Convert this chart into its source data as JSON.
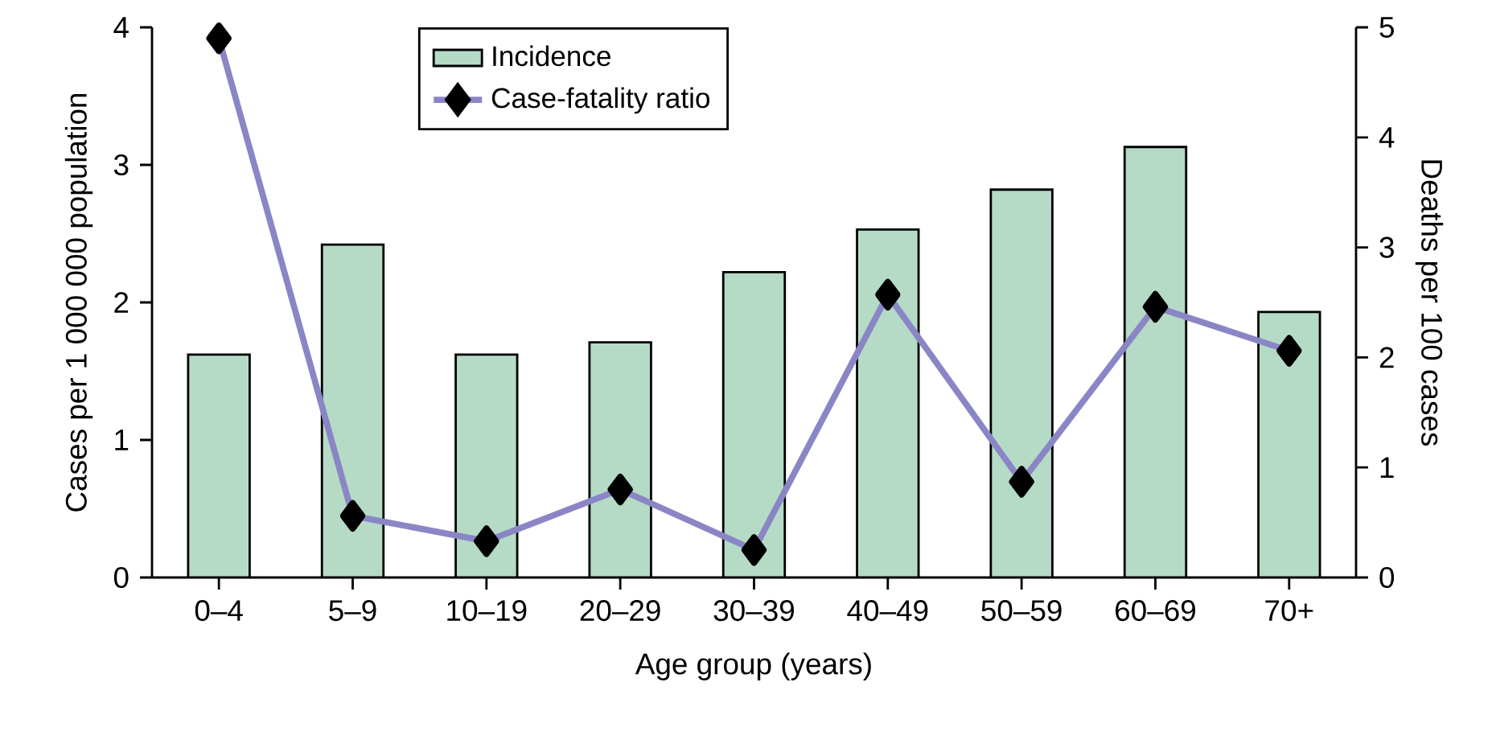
{
  "chart_data": {
    "type": "bar",
    "xlabel": "Age group (years)",
    "ylabel": "Cases per 1 000 000 population",
    "y2label": "Deaths per 100 cases",
    "categories": [
      "0–4",
      "5–9",
      "10–19",
      "20–29",
      "30–39",
      "40–49",
      "50–59",
      "60–69",
      "70+"
    ],
    "series": [
      {
        "name": "Incidence",
        "color": "#b5dbc6",
        "values": [
          1.62,
          2.42,
          1.62,
          1.71,
          2.22,
          2.53,
          2.82,
          3.13,
          1.93
        ]
      },
      {
        "name": "Case-fatality ratio",
        "type": "line",
        "axis": "y2",
        "color": "#8a86c6",
        "values": [
          4.9,
          0.56,
          0.33,
          0.8,
          0.25,
          2.57,
          0.87,
          2.46,
          2.06
        ]
      }
    ],
    "ylim": [
      0,
      4
    ],
    "yticks": [
      0,
      1,
      2,
      3,
      4
    ],
    "y2lim": [
      0,
      5
    ],
    "y2ticks": [
      0,
      1,
      2,
      3,
      4,
      5
    ],
    "legend": "top",
    "marker": "diamond",
    "line_style": "solid"
  }
}
